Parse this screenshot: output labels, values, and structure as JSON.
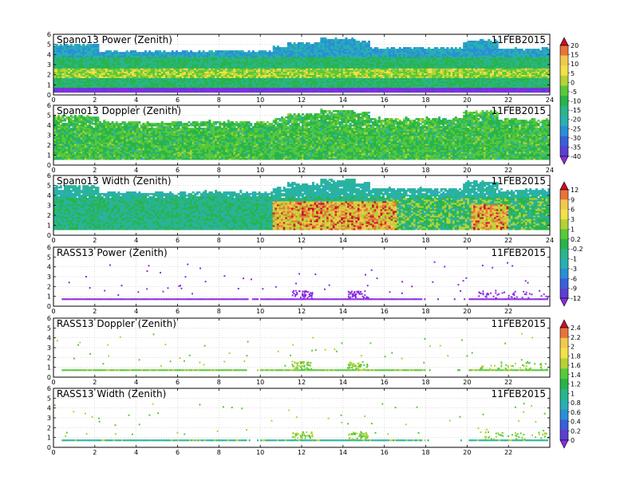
{
  "date": "11FEB2015",
  "panels": [
    {
      "title": "Spano13 Power (Zenith)",
      "kind": "spano",
      "field": "power",
      "xticks": [
        "0",
        "2",
        "4",
        "6",
        "8",
        "10",
        "12",
        "14",
        "16",
        "18",
        "20",
        "22",
        "24"
      ]
    },
    {
      "title": "Spano13 Doppler (Zenith)",
      "kind": "spano",
      "field": "doppler",
      "xticks": [
        "0",
        "2",
        "4",
        "6",
        "8",
        "10",
        "12",
        "14",
        "16",
        "18",
        "20",
        "22",
        "24"
      ]
    },
    {
      "title": "Spano13 Width (Zenith)",
      "kind": "spano",
      "field": "width",
      "xticks": [
        "0",
        "2",
        "4",
        "6",
        "8",
        "10",
        "12",
        "14",
        "16",
        "18",
        "20",
        "22",
        "24"
      ]
    },
    {
      "title": "RASS13 Power (Zenith)",
      "kind": "rass",
      "field": "power",
      "xticks": [
        "0",
        "2",
        "4",
        "6",
        "8",
        "10",
        "12",
        "14",
        "16",
        "18",
        "20",
        "22"
      ]
    },
    {
      "title": "RASS13 Doppler (Zenith)",
      "kind": "rass",
      "field": "doppler",
      "xticks": [
        "0",
        "2",
        "4",
        "6",
        "8",
        "10",
        "12",
        "14",
        "16",
        "18",
        "20",
        "22"
      ]
    },
    {
      "title": "RASS13 Width (Zenith)",
      "kind": "rass",
      "field": "width",
      "xticks": [
        "0",
        "2",
        "4",
        "6",
        "8",
        "10",
        "12",
        "14",
        "16",
        "18",
        "20",
        "22"
      ]
    }
  ],
  "yticks": [
    "0",
    "1",
    "2",
    "3",
    "4",
    "5",
    "6"
  ],
  "colorbars": [
    {
      "name": "spano-power-doppler-colorbar",
      "labels": [
        "20",
        "15",
        "10",
        "5",
        "0",
        "-5",
        "-10",
        "-15",
        "-20",
        "-25",
        "-30",
        "-35",
        "-40"
      ],
      "colors": [
        "#c8102e",
        "#e8743b",
        "#f2c94c",
        "#f3e04a",
        "#b5d335",
        "#58c93a",
        "#28b44a",
        "#2ab58a",
        "#28b0b3",
        "#2a8fd6",
        "#3a5fd8",
        "#5a3fd0",
        "#8a2be2"
      ]
    },
    {
      "name": "spano-width-rass-power-colorbar",
      "labels": [
        "12",
        "9",
        "6",
        "3",
        "1",
        "0.2",
        "-0.2",
        "-1",
        "-3",
        "-6",
        "-9",
        "-12"
      ],
      "colors": [
        "#c8102e",
        "#e8743b",
        "#f2c94c",
        "#f3e04a",
        "#b5d335",
        "#58c93a",
        "#28b44a",
        "#2ab58a",
        "#28b0b3",
        "#2a8fd6",
        "#3a5fd8",
        "#5a3fd0",
        "#8a2be2"
      ]
    },
    {
      "name": "rass-doppler-width-colorbar",
      "labels": [
        "2.4",
        "2.2",
        "2",
        "1.8",
        "1.6",
        "1.4",
        "1.2",
        "1",
        "0.8",
        "0.6",
        "0.4",
        "0.2",
        "0"
      ],
      "colors": [
        "#c8102e",
        "#e8743b",
        "#f2c94c",
        "#f3e04a",
        "#b5d335",
        "#58c93a",
        "#28b44a",
        "#2ab58a",
        "#28b0b3",
        "#2a8fd6",
        "#3a5fd8",
        "#5a3fd0",
        "#8a2be2"
      ]
    }
  ],
  "chart_data": [
    {
      "type": "heatmap",
      "title": "Spano13 Power (Zenith)",
      "xlim": [
        0,
        24
      ],
      "ylim": [
        0,
        6
      ],
      "colorscale_range": [
        -40,
        20
      ],
      "grid": true
    },
    {
      "type": "heatmap",
      "title": "Spano13 Doppler (Zenith)",
      "xlim": [
        0,
        24
      ],
      "ylim": [
        0,
        6
      ],
      "colorscale_range": [
        -40,
        20
      ],
      "grid": true
    },
    {
      "type": "heatmap",
      "title": "Spano13 Width (Zenith)",
      "xlim": [
        0,
        24
      ],
      "ylim": [
        0,
        6
      ],
      "colorscale_range": [
        -12,
        12
      ],
      "grid": true
    },
    {
      "type": "scatter",
      "title": "RASS13 Power (Zenith)",
      "xlim": [
        0,
        24
      ],
      "ylim": [
        0,
        6
      ],
      "colorscale_range": [
        -12,
        12
      ],
      "grid": true
    },
    {
      "type": "scatter",
      "title": "RASS13 Doppler (Zenith)",
      "xlim": [
        0,
        24
      ],
      "ylim": [
        0,
        6
      ],
      "colorscale_range": [
        0,
        2.4
      ],
      "grid": true
    },
    {
      "type": "scatter",
      "title": "RASS13 Width (Zenith)",
      "xlim": [
        0,
        24
      ],
      "ylim": [
        0,
        6
      ],
      "colorscale_range": [
        0,
        2.4
      ],
      "grid": true
    }
  ]
}
